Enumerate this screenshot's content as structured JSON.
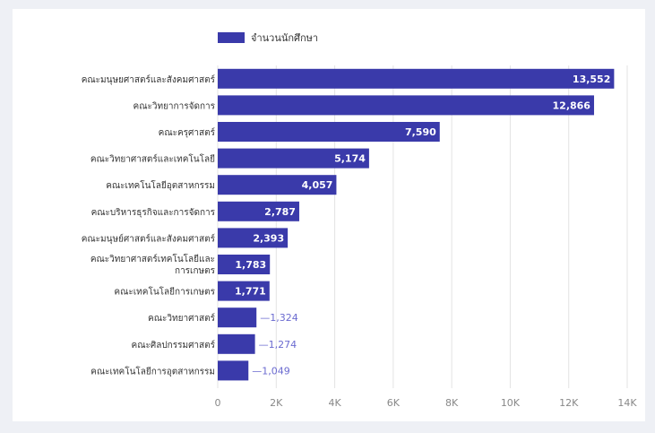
{
  "chart_data": {
    "type": "bar",
    "orientation": "horizontal",
    "legend": {
      "position": "top-left",
      "label": "จำนวนนักศึกษา"
    },
    "categories": [
      "คณะมนุษยศาสตร์และสังคมศาสตร์",
      "คณะวิทยาการจัดการ",
      "คณะครุศาสตร์",
      "คณะวิทยาศาสตร์และเทคโนโลยี",
      "คณะเทคโนโลยีอุตสาหกรรม",
      "คณะบริหารธุรกิจและการจัดการ",
      "คณะมนุษย์ศาสตร์และสังคมศาสตร์",
      "คณะวิทยาศาสตร์เทคโนโลยีและการเกษตร",
      "คณะเทคโนโลยีการเกษตร",
      "คณะวิทยาศาสตร์",
      "คณะศิลปกรรมศาสตร์",
      "คณะเทคโนโลยีการอุตสาหกรรม"
    ],
    "category_lines": [
      [
        "คณะมนุษยศาสตร์และสังคมศาสตร์"
      ],
      [
        "คณะวิทยาการจัดการ"
      ],
      [
        "คณะครุศาสตร์"
      ],
      [
        "คณะวิทยาศาสตร์และเทคโนโลยี"
      ],
      [
        "คณะเทคโนโลยีอุตสาหกรรม"
      ],
      [
        "คณะบริหารธุรกิจและการจัดการ"
      ],
      [
        "คณะมนุษย์ศาสตร์และสังคมศาสตร์"
      ],
      [
        "คณะวิทยาศาสตร์เทคโนโลยีและ",
        "การเกษตร"
      ],
      [
        "คณะเทคโนโลยีการเกษตร"
      ],
      [
        "คณะวิทยาศาสตร์"
      ],
      [
        "คณะศิลปกรรมศาสตร์"
      ],
      [
        "คณะเทคโนโลยีการอุตสาหกรรม"
      ]
    ],
    "values": [
      13552,
      12866,
      7590,
      5174,
      4057,
      2787,
      2393,
      1783,
      1771,
      1324,
      1274,
      1049
    ],
    "value_labels": [
      "13,552",
      "12,866",
      "7,590",
      "5,174",
      "4,057",
      "2,787",
      "2,393",
      "1,783",
      "1,771",
      "1,324",
      "1,274",
      "1,049"
    ],
    "xlim": [
      0,
      14000
    ],
    "x_ticks": [
      0,
      2000,
      4000,
      6000,
      8000,
      10000,
      12000,
      14000
    ],
    "x_tick_labels": [
      "0",
      "2K",
      "4K",
      "6K",
      "8K",
      "10K",
      "12K",
      "14K"
    ],
    "grid": true,
    "colors": {
      "bar": "#3a3aaa",
      "label_inside": "#ffffff",
      "label_outside": "#6b6bd0",
      "grid": "#e3e3e3",
      "text": "#333333",
      "tick": "#888888"
    }
  }
}
